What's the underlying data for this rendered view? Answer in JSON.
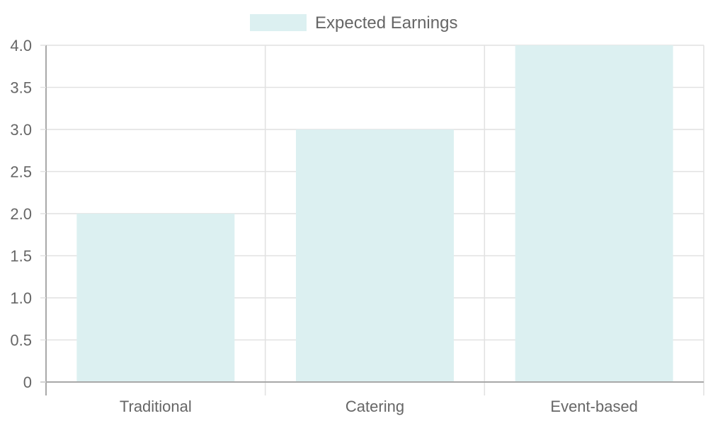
{
  "chart_data": {
    "type": "bar",
    "categories": [
      "Traditional",
      "Catering",
      "Event-based"
    ],
    "series": [
      {
        "name": "Expected Earnings",
        "values": [
          2,
          3,
          4
        ]
      }
    ],
    "title": "",
    "xlabel": "",
    "ylabel": "",
    "ylim": [
      0,
      4
    ],
    "y_ticks": [
      "0",
      "0.5",
      "1.0",
      "1.5",
      "2.0",
      "2.5",
      "3.0",
      "3.5",
      "4.0"
    ],
    "y_tick_values": [
      0,
      0.5,
      1,
      1.5,
      2,
      2.5,
      3,
      3.5,
      4
    ],
    "grid": true,
    "legend_position": "top-center",
    "colors": {
      "bar_fill": "#dcf0f1",
      "grid": "#e1e1e1",
      "axis": "#a8a8a8",
      "text": "#666666"
    }
  }
}
